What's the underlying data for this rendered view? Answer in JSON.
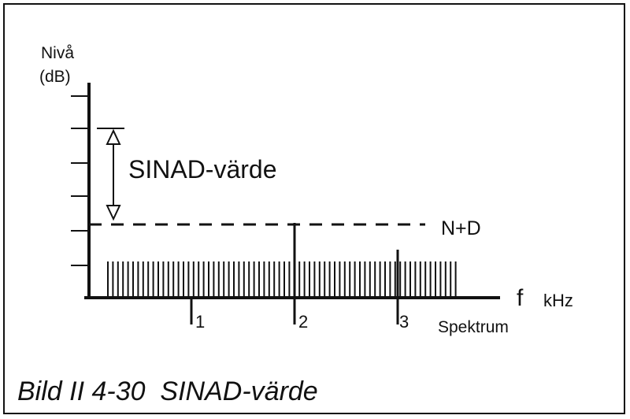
{
  "diagram": {
    "y_axis_label_line1": "Nivå",
    "y_axis_label_line2": "(dB)",
    "sinad_label": "SINAD-värde",
    "nd_label": "N+D",
    "x_axis_symbol": "f",
    "x_axis_unit": "kHz",
    "spectrum_label": "Spektrum",
    "markers": [
      "1",
      "2",
      "3"
    ],
    "caption": "Bild II 4-30  SINAD-värde"
  },
  "colors": {
    "ink": "#111111",
    "background": "#ffffff"
  }
}
